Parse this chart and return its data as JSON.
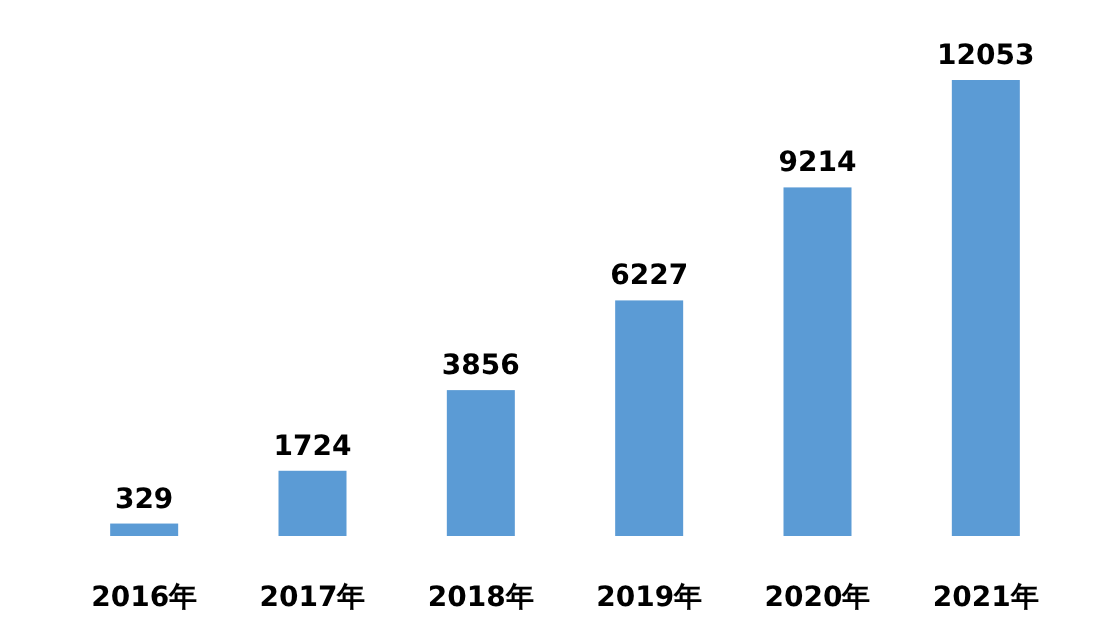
{
  "chart_data": {
    "type": "bar",
    "categories": [
      "2016年",
      "2017年",
      "2018年",
      "2019年",
      "2020年",
      "2021年"
    ],
    "values": [
      329,
      1724,
      3856,
      6227,
      9214,
      12053
    ],
    "color": "#5b9bd5",
    "data_labels": true
  }
}
